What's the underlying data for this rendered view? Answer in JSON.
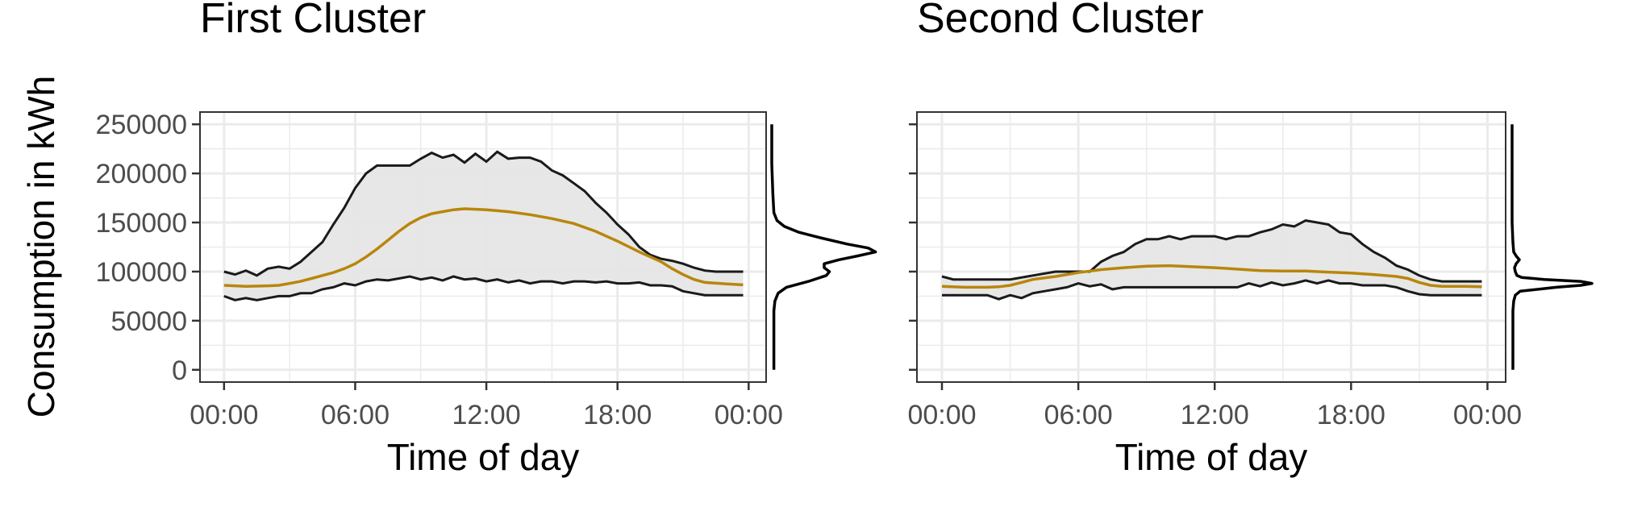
{
  "ylabel": "Consumption in kWh",
  "colors": {
    "mean": "#b8860b",
    "band_fill": "#e6e6e6",
    "band_edge": "#1a1a1a",
    "grid_major": "#ebebeb",
    "panel_border": "#333333",
    "density": "#000000"
  },
  "chart_data": [
    {
      "type": "area",
      "title": "First Cluster",
      "xlabel": "Time of day",
      "ylabel": "Consumption in kWh",
      "x_ticks": [
        "00:00",
        "06:00",
        "12:00",
        "18:00",
        "00:00"
      ],
      "x_tick_hours": [
        0,
        6,
        12,
        18,
        24
      ],
      "xlim_hours": [
        -1.1,
        24.8
      ],
      "y_ticks": [
        0,
        50000,
        100000,
        150000,
        200000,
        250000
      ],
      "y_tick_labels": [
        "0",
        "50000",
        "100000",
        "150000",
        "200000",
        "250000"
      ],
      "ylim": [
        -12500,
        262500
      ],
      "grid": true,
      "series": [
        {
          "role": "upper",
          "x": [
            0,
            0.5,
            1,
            1.5,
            2,
            2.5,
            3,
            3.5,
            4,
            4.5,
            5,
            5.5,
            6,
            6.5,
            7,
            7.5,
            8,
            8.5,
            9,
            9.5,
            10,
            10.5,
            11,
            11.5,
            12,
            12.5,
            13,
            13.5,
            14,
            14.5,
            15,
            15.5,
            16,
            16.5,
            17,
            17.5,
            18,
            18.5,
            19,
            19.5,
            20,
            20.5,
            21,
            21.5,
            22,
            22.5,
            23,
            23.5,
            23.75
          ],
          "values": [
            100000,
            97000,
            101000,
            96000,
            103000,
            105000,
            103000,
            110000,
            120000,
            130000,
            148000,
            165000,
            185000,
            200000,
            208000,
            208000,
            208000,
            208000,
            215000,
            221000,
            216000,
            219000,
            211000,
            220000,
            212000,
            222000,
            215000,
            216000,
            216000,
            212000,
            203000,
            198000,
            190000,
            182000,
            170000,
            160000,
            148000,
            138000,
            125000,
            117000,
            113000,
            111000,
            108000,
            104000,
            101000,
            100000,
            100000,
            100000,
            100000
          ]
        },
        {
          "role": "mean",
          "x": [
            0,
            1,
            2,
            2.5,
            3,
            3.5,
            4,
            4.5,
            5,
            5.5,
            6,
            6.5,
            7,
            7.5,
            8,
            8.5,
            9,
            9.5,
            10,
            10.5,
            11,
            11.5,
            12,
            12.5,
            13,
            14,
            15,
            16,
            17,
            18,
            19,
            20,
            20.5,
            21,
            21.5,
            22,
            23,
            23.75
          ],
          "values": [
            86000,
            85000,
            85500,
            86000,
            88000,
            90000,
            93000,
            96000,
            99000,
            103000,
            108000,
            115000,
            123000,
            132000,
            141000,
            149000,
            155000,
            159000,
            161000,
            163000,
            164000,
            163500,
            163000,
            162000,
            161000,
            158000,
            154000,
            149000,
            141000,
            131000,
            120000,
            110000,
            103000,
            97000,
            92000,
            89000,
            87500,
            86500
          ]
        },
        {
          "role": "lower",
          "x": [
            0,
            0.5,
            1,
            1.5,
            2,
            2.5,
            3,
            3.5,
            4,
            4.5,
            5,
            5.5,
            6,
            6.5,
            7,
            7.5,
            8,
            8.5,
            9,
            9.5,
            10,
            10.5,
            11,
            11.5,
            12,
            12.5,
            13,
            13.5,
            14,
            14.5,
            15,
            15.5,
            16,
            16.5,
            17,
            17.5,
            18,
            18.5,
            19,
            19.5,
            20,
            20.5,
            21,
            21.5,
            22,
            22.5,
            23,
            23.5,
            23.75
          ],
          "values": [
            75000,
            71000,
            73000,
            71000,
            73000,
            75000,
            75000,
            78000,
            78000,
            82000,
            84000,
            88000,
            86000,
            90000,
            92000,
            91000,
            93000,
            95000,
            92000,
            94000,
            91000,
            95000,
            92000,
            93000,
            90000,
            92000,
            89000,
            91000,
            88000,
            90000,
            90000,
            88000,
            90000,
            90000,
            89000,
            90000,
            88000,
            88000,
            89000,
            86000,
            86000,
            85000,
            80000,
            78000,
            76000,
            76000,
            76000,
            76000,
            76000
          ]
        }
      ],
      "density": {
        "description_free": true,
        "y": [
          0,
          20000,
          40000,
          60000,
          70000,
          78000,
          84000,
          90000,
          96000,
          100000,
          104000,
          108000,
          112000,
          116000,
          120000,
          124000,
          128000,
          134000,
          140000,
          146000,
          152000,
          160000,
          180000,
          210000,
          250000
        ],
        "values": [
          0.02,
          0.02,
          0.02,
          0.02,
          0.03,
          0.06,
          0.14,
          0.35,
          0.52,
          0.55,
          0.5,
          0.5,
          0.64,
          0.82,
          0.99,
          0.92,
          0.72,
          0.48,
          0.26,
          0.12,
          0.05,
          0.02,
          0.01,
          0.0,
          0.0
        ]
      }
    },
    {
      "type": "area",
      "title": "Second Cluster",
      "xlabel": "Time of day",
      "ylabel": "Consumption in kWh",
      "x_ticks": [
        "00:00",
        "06:00",
        "12:00",
        "18:00",
        "00:00"
      ],
      "x_tick_hours": [
        0,
        6,
        12,
        18,
        24
      ],
      "xlim_hours": [
        -1.1,
        24.8
      ],
      "y_ticks": [
        0,
        50000,
        100000,
        150000,
        200000,
        250000
      ],
      "ylim": [
        -12500,
        262500
      ],
      "grid": true,
      "series": [
        {
          "role": "upper",
          "x": [
            0,
            0.5,
            1,
            2,
            3,
            4,
            5,
            6,
            6.5,
            7,
            7.5,
            8,
            8.5,
            9,
            9.5,
            10,
            10.5,
            11,
            11.5,
            12,
            12.5,
            13,
            13.5,
            14,
            14.5,
            15,
            15.5,
            16,
            16.5,
            17,
            17.5,
            18,
            18.5,
            19,
            19.5,
            20,
            20.5,
            21,
            21.5,
            22,
            22.5,
            23,
            23.5,
            23.75
          ],
          "values": [
            95000,
            92000,
            92000,
            92000,
            92000,
            96000,
            100000,
            100000,
            100000,
            110000,
            116000,
            120000,
            128000,
            133000,
            133000,
            136000,
            133000,
            136000,
            136000,
            136000,
            133000,
            136000,
            136000,
            140000,
            143000,
            148000,
            146000,
            152000,
            150000,
            148000,
            140000,
            138000,
            128000,
            120000,
            114000,
            106000,
            102000,
            96000,
            92000,
            90000,
            90000,
            90000,
            90000,
            90000
          ]
        },
        {
          "role": "mean",
          "x": [
            0,
            1,
            2,
            2.5,
            3,
            3.5,
            4,
            5,
            6,
            7,
            8,
            9,
            10,
            11,
            12,
            13,
            14,
            15,
            16,
            17,
            18,
            19,
            20,
            20.5,
            21,
            21.5,
            22,
            23,
            23.75
          ],
          "values": [
            85000,
            84000,
            84000,
            84500,
            86000,
            89000,
            92000,
            95000,
            99000,
            102000,
            104000,
            105500,
            106000,
            105000,
            104000,
            102500,
            101000,
            100500,
            100500,
            99500,
            98500,
            97000,
            95000,
            93000,
            89000,
            86000,
            85000,
            85000,
            84500
          ]
        },
        {
          "role": "lower",
          "x": [
            0,
            0.5,
            1,
            2,
            2.5,
            3,
            3.5,
            4,
            4.5,
            5,
            5.5,
            6,
            6.5,
            7,
            7.5,
            8,
            8.5,
            9,
            9.5,
            10,
            11,
            12,
            12.5,
            13,
            13.5,
            14,
            14.5,
            15,
            15.5,
            16,
            16.5,
            17,
            17.5,
            18,
            18.5,
            19,
            19.5,
            20,
            20.5,
            21,
            21.5,
            22,
            23,
            23.75
          ],
          "values": [
            76000,
            76000,
            76000,
            76000,
            72000,
            76000,
            73000,
            78000,
            80000,
            82000,
            84000,
            88000,
            85000,
            87000,
            82000,
            84000,
            84000,
            84000,
            84000,
            84000,
            84000,
            84000,
            84000,
            84000,
            88000,
            85000,
            89000,
            86000,
            88000,
            91000,
            88000,
            91000,
            88000,
            88000,
            86000,
            86000,
            86000,
            84000,
            80000,
            77000,
            76000,
            76000,
            76000,
            76000
          ]
        }
      ],
      "density": {
        "y": [
          0,
          20000,
          40000,
          60000,
          70000,
          76000,
          80000,
          84000,
          86000,
          88000,
          90000,
          92000,
          94000,
          96000,
          100000,
          104000,
          108000,
          112000,
          116000,
          120000,
          130000,
          150000,
          200000,
          250000
        ],
        "values": [
          0.01,
          0.01,
          0.01,
          0.01,
          0.02,
          0.04,
          0.1,
          0.55,
          0.85,
          0.99,
          0.85,
          0.4,
          0.12,
          0.06,
          0.04,
          0.03,
          0.05,
          0.09,
          0.05,
          0.02,
          0.01,
          0.0,
          0.0,
          0.0
        ]
      }
    }
  ]
}
